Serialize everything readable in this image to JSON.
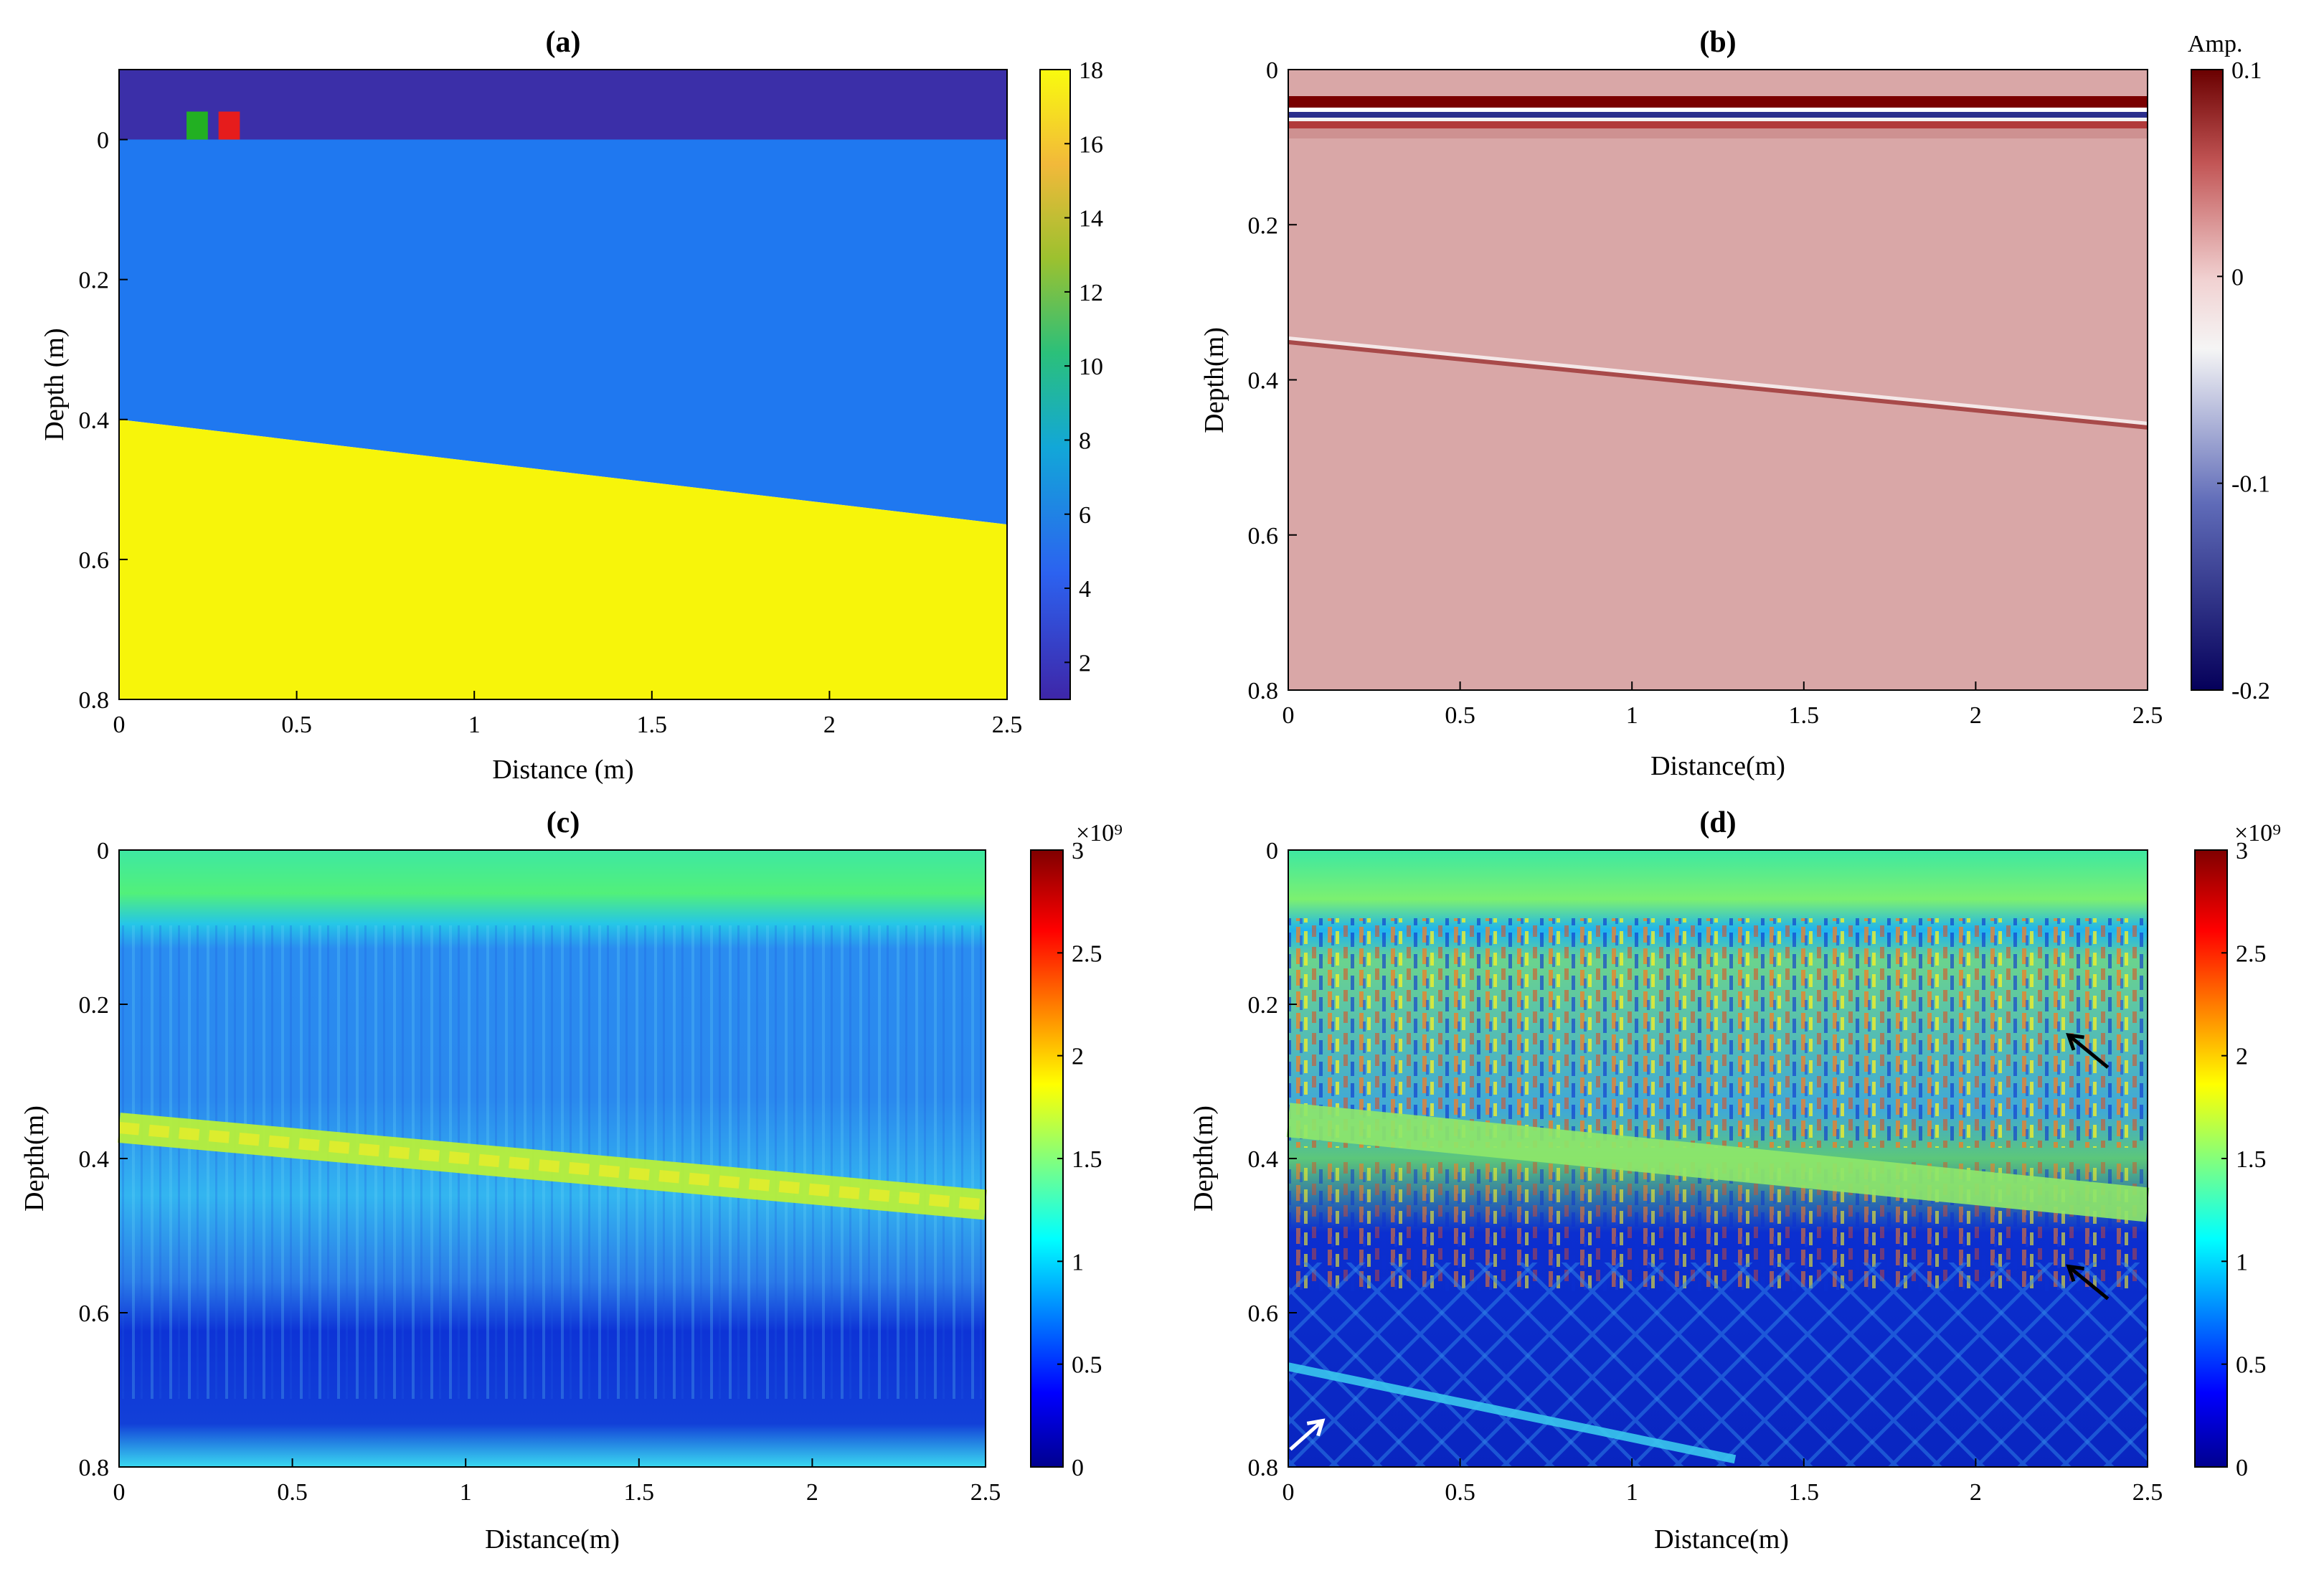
{
  "figure": {
    "colors": {
      "air": "#3b2fa8",
      "layer1": "#1f78f0",
      "layer2": "#f7f50a",
      "antenna_tx": "#22b022",
      "antenna_rx": "#e61c1c",
      "radargram_bg": "#d9a7a7",
      "arrow_black": "#000000",
      "arrow_white": "#ffffff"
    }
  },
  "chart_data": [
    {
      "id": "a",
      "type": "heatmap",
      "title": "(a)",
      "xlabel": "Distance (m)",
      "ylabel": "Depth (m)",
      "xlim": [
        0,
        2.5
      ],
      "ylim": [
        0.8,
        -0.1
      ],
      "xticks": [
        "0",
        "0.5",
        "1",
        "1.5",
        "2",
        "2.5"
      ],
      "yticks": [
        "0",
        "0.2",
        "0.4",
        "0.6",
        "0.8"
      ],
      "colorbar": {
        "min": 1,
        "max": 18,
        "ticks": [
          "2",
          "4",
          "6",
          "8",
          "10",
          "12",
          "14",
          "16",
          "18"
        ]
      },
      "model": {
        "air": {
          "depth_range": [
            -0.1,
            0
          ],
          "value": 1
        },
        "layer1": {
          "value": 5
        },
        "layer2": {
          "value": 18
        },
        "interface": {
          "x": [
            0,
            2.5
          ],
          "depth": [
            0.4,
            0.55
          ]
        },
        "antennas": [
          {
            "name": "Tx",
            "x_range": [
              0.19,
              0.25
            ],
            "depth_range": [
              -0.04,
              0
            ]
          },
          {
            "name": "Rx",
            "x_range": [
              0.28,
              0.34
            ],
            "depth_range": [
              -0.04,
              0
            ]
          }
        ]
      }
    },
    {
      "id": "b",
      "type": "heatmap",
      "title": "(b)",
      "xlabel": "Distance(m)",
      "ylabel": "Depth(m)",
      "xlim": [
        0,
        2.5
      ],
      "ylim": [
        0.8,
        0
      ],
      "xticks": [
        "0",
        "0.5",
        "1",
        "1.5",
        "2",
        "2.5"
      ],
      "yticks": [
        "0",
        "0.2",
        "0.4",
        "0.6",
        "0.8"
      ],
      "colorbar": {
        "label": "Amp.",
        "min": -0.2,
        "max": 0.1,
        "ticks": [
          "0.1",
          "0",
          "-0.1",
          "-0.2"
        ]
      },
      "features": {
        "direct_wave_depth": [
          0.04,
          0.075
        ],
        "reflection": {
          "x": [
            0,
            2.5
          ],
          "depth": [
            0.35,
            0.46
          ]
        }
      }
    },
    {
      "id": "c",
      "type": "heatmap",
      "title": "(c)",
      "xlabel": "Distance(m)",
      "ylabel": "Depth(m)",
      "xlim": [
        0,
        2.5
      ],
      "ylim": [
        0.8,
        0
      ],
      "xticks": [
        "0",
        "0.5",
        "1",
        "1.5",
        "2",
        "2.5"
      ],
      "yticks": [
        "0",
        "0.2",
        "0.4",
        "0.6",
        "0.8"
      ],
      "colorbar": {
        "exponent": "×10⁹",
        "min": 0,
        "max": 3,
        "ticks": [
          "3",
          "2.5",
          "2",
          "1.5",
          "1",
          "0.5",
          "0"
        ]
      },
      "features": {
        "top_band_depth": [
          0,
          0.1
        ],
        "reflection": {
          "x": [
            0,
            2.5
          ],
          "depth": [
            0.36,
            0.46
          ]
        }
      }
    },
    {
      "id": "d",
      "type": "heatmap",
      "title": "(d)",
      "xlabel": "Distance(m)",
      "ylabel": "Depth(m)",
      "xlim": [
        0,
        2.5
      ],
      "ylim": [
        0.8,
        0
      ],
      "xticks": [
        "0",
        "0.5",
        "1",
        "1.5",
        "2",
        "2.5"
      ],
      "yticks": [
        "0",
        "0.2",
        "0.4",
        "0.6",
        "0.8"
      ],
      "colorbar": {
        "exponent": "×10⁹",
        "min": 0,
        "max": 3,
        "ticks": [
          "3",
          "2.5",
          "2",
          "1.5",
          "1",
          "0.5",
          "0"
        ]
      },
      "features": {
        "reflection": {
          "x": [
            0,
            2.5
          ],
          "depth": [
            0.35,
            0.46
          ]
        },
        "deep_event": {
          "x": [
            0,
            1.3
          ],
          "depth": [
            0.67,
            0.79
          ]
        },
        "arrows": [
          {
            "color": "black",
            "x": 2.27,
            "depth": 0.24
          },
          {
            "color": "black",
            "x": 2.27,
            "depth": 0.54
          },
          {
            "color": "white",
            "x": 0.1,
            "depth": 0.74
          }
        ]
      }
    }
  ]
}
